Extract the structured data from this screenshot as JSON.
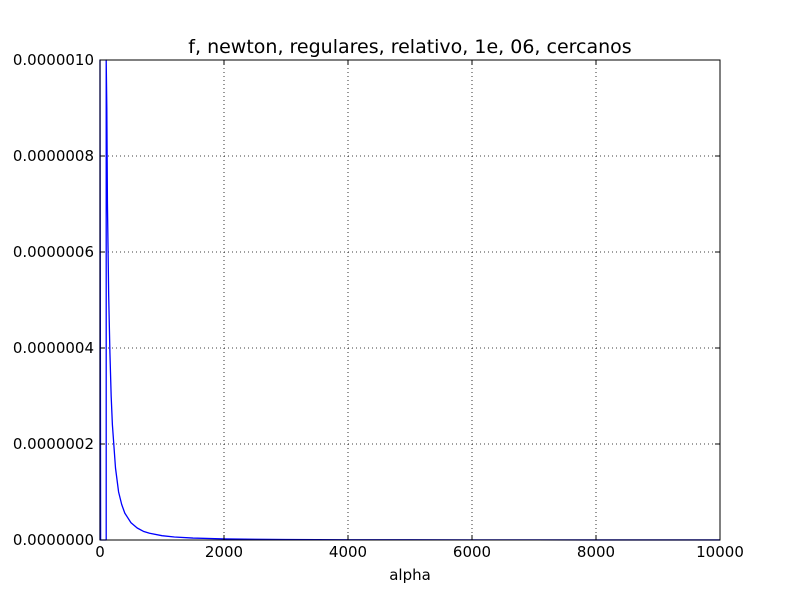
{
  "chart_data": {
    "type": "line",
    "title": "f, newton, regulares, relativo, 1e, 06, cercanos",
    "xlabel": "alpha",
    "ylabel": "",
    "xlim": [
      0,
      10000
    ],
    "ylim": [
      0,
      1e-06
    ],
    "grid": true,
    "x_ticks": [
      0,
      2000,
      4000,
      6000,
      8000,
      10000
    ],
    "x_tick_labels": [
      "0",
      "2000",
      "4000",
      "6000",
      "8000",
      "10000"
    ],
    "y_ticks": [
      0,
      2e-07,
      4e-07,
      6e-07,
      8e-07,
      1e-06
    ],
    "y_tick_labels": [
      "0.0000000",
      "0.0000002",
      "0.0000004",
      "0.0000006",
      "0.0000008",
      "0.0000010"
    ],
    "series": [
      {
        "color": "#0000ff",
        "x": [
          0,
          0,
          10,
          100,
          100,
          110,
          120,
          140,
          160,
          180,
          200,
          250,
          300,
          350,
          400,
          500,
          600,
          700,
          800,
          1000,
          1200,
          1500,
          2000,
          2500,
          3000,
          4000,
          5000,
          6000,
          7000,
          8000,
          9000,
          10000
        ],
        "y": [
          0.0,
          1e-06,
          0.0,
          0.0,
          1e-06,
          9e-07,
          7e-07,
          5.1e-07,
          3.9e-07,
          3e-07,
          2.4e-07,
          1.5e-07,
          1e-07,
          7.4e-08,
          5.6e-08,
          3.6e-08,
          2.5e-08,
          1.8e-08,
          1.4e-08,
          9e-09,
          6.3e-09,
          4e-09,
          2.3e-09,
          1.4e-09,
          1e-09,
          5.5e-10,
          3.5e-10,
          2.4e-10,
          1.8e-10,
          1.4e-10,
          1.1e-10,
          9e-11
        ]
      }
    ]
  }
}
